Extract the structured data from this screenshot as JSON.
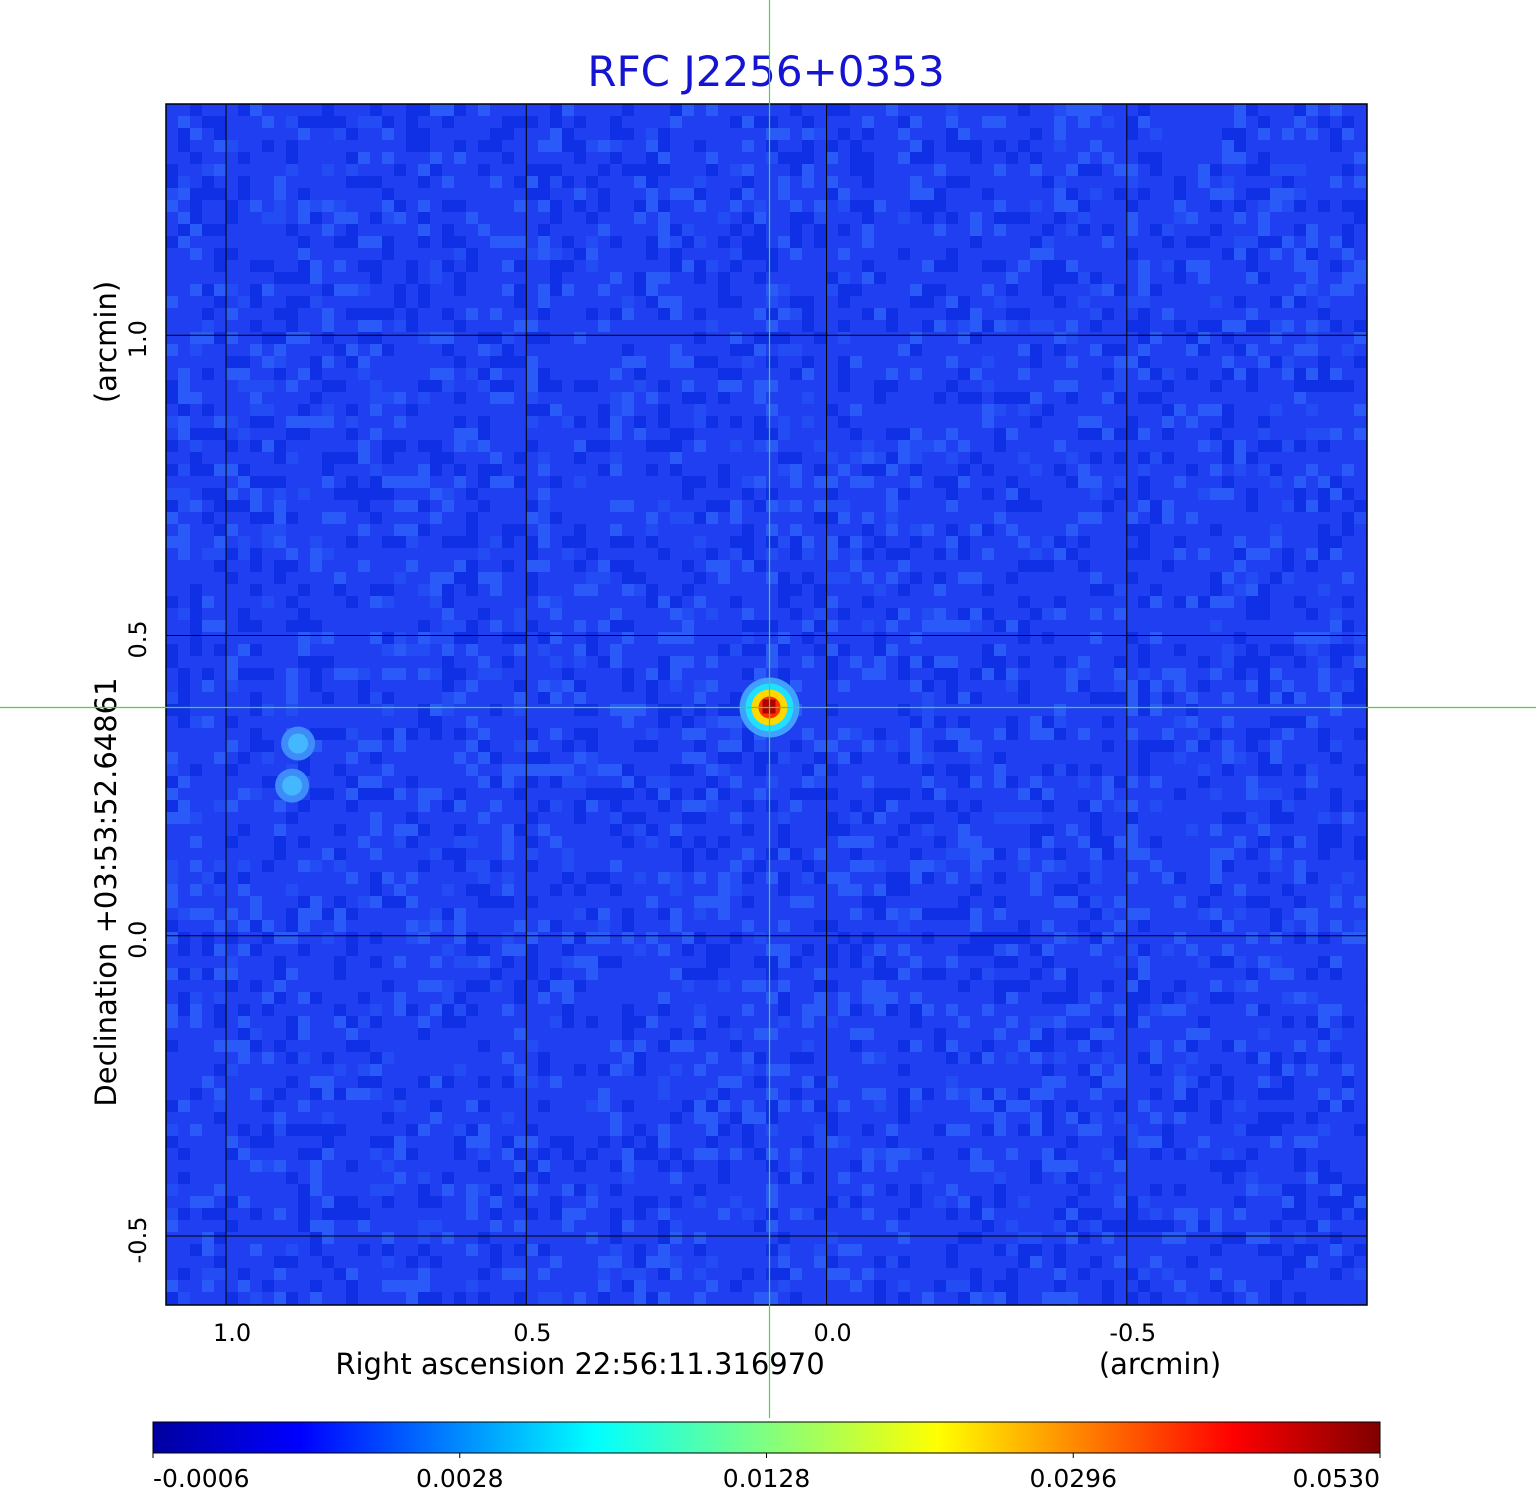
{
  "chart_data": {
    "type": "heatmap",
    "title": "RFC J2256+0353",
    "xlabel": "Right ascension  22:56:11.316970",
    "xunit": "(arcmin)",
    "ylabel": "Declination  +03:53:52.64861",
    "yunit": "(arcmin)",
    "xlim": [
      1.1,
      -0.9
    ],
    "ylim": [
      -0.615,
      1.385
    ],
    "xticks": [
      1.0,
      0.5,
      0.0,
      -0.5
    ],
    "xtick_labels": [
      "1.0",
      "0.5",
      "0.0",
      "-0.5"
    ],
    "yticks": [
      1.0,
      0.5,
      0.0,
      -0.5
    ],
    "ytick_labels": [
      "1.0",
      "0.5",
      "0.0",
      "-0.5"
    ],
    "grid": true,
    "crosshair": {
      "x": 0.095,
      "y": 0.38
    },
    "sources": [
      {
        "x": 0.095,
        "y": 0.38,
        "peak": 0.053
      },
      {
        "x": 0.88,
        "y": 0.32,
        "peak": 0.006
      },
      {
        "x": 0.89,
        "y": 0.25,
        "peak": 0.006
      }
    ],
    "colorbar": {
      "min": -0.0006,
      "max": 0.053,
      "tick_labels": [
        "-0.0006",
        "0.0028",
        "0.0128",
        "0.0296",
        "0.0530"
      ],
      "colormap": [
        "#00008f",
        "#0000ff",
        "#00ffff",
        "#ffff00",
        "#ff0000",
        "#800000"
      ]
    },
    "colors": {
      "title": "#1414d2",
      "crosshair": "#3cdc3c",
      "grid": "#000000"
    }
  }
}
